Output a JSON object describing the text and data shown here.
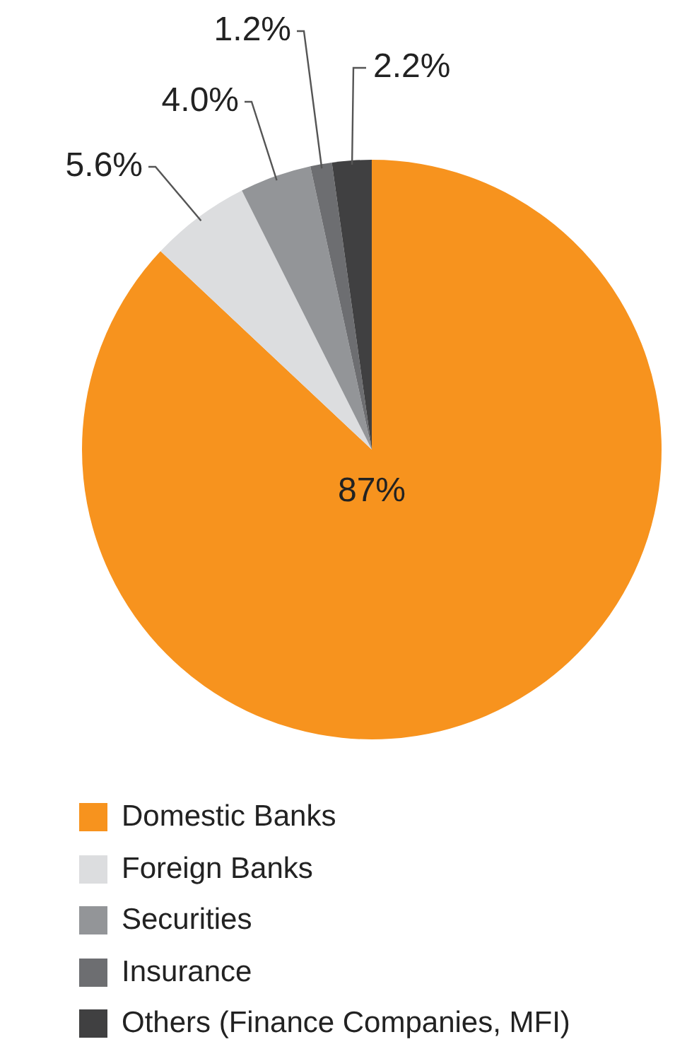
{
  "chart_data": {
    "type": "pie",
    "categories": [
      "Domestic Banks",
      "Foreign Banks",
      "Securities",
      "Insurance",
      "Others (Finance Companies, MFI)"
    ],
    "values": [
      87,
      5.6,
      4.0,
      1.2,
      2.2
    ],
    "value_labels": [
      "87%",
      "5.6%",
      "4.0%",
      "1.2%",
      "2.2%"
    ],
    "colors": [
      "#f7931e",
      "#dcdddf",
      "#939598",
      "#6d6e71",
      "#404041"
    ],
    "legend": "bottom"
  }
}
